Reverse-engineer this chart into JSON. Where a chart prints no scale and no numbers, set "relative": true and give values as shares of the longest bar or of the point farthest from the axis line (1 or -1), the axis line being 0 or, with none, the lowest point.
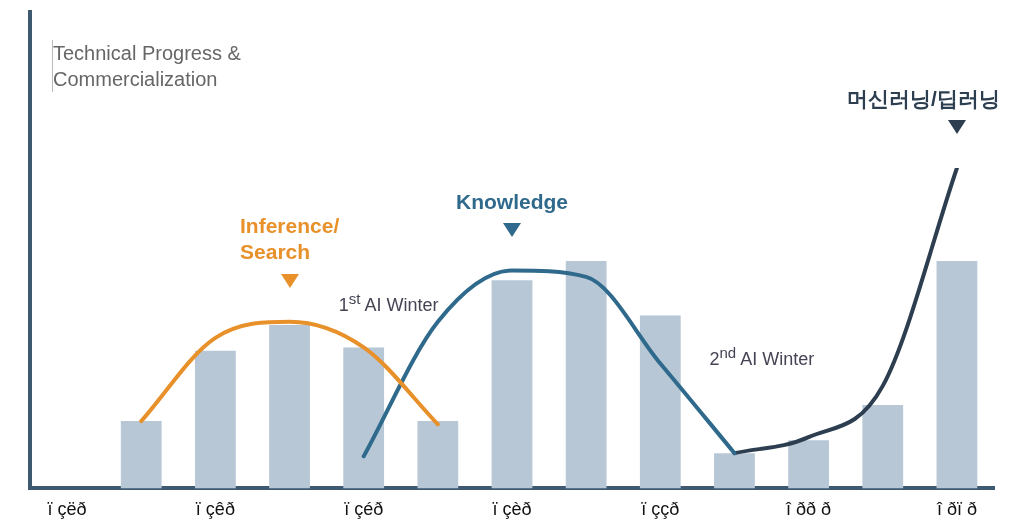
{
  "chart_data": {
    "type": "bar",
    "relative": true,
    "ylabel": "Technical Progress & Commercialization",
    "categories": [
      "ï çëð",
      null,
      "ï çêð",
      null,
      "ï çéð",
      null,
      "ï çèð",
      null,
      "ï ççð",
      null,
      "î ðð ð",
      null,
      "î ðï ð"
    ],
    "series": [
      {
        "color": "#b7c7d6",
        "values": [
          null,
          0.21,
          0.43,
          0.51,
          0.44,
          0.21,
          0.65,
          0.71,
          0.54,
          0.11,
          0.15,
          0.26,
          0.71
        ]
      },
      {
        "type": "line",
        "name": "Inference/ Search",
        "color": "#e8902a",
        "values": [
          null,
          0.21,
          0.47,
          0.52,
          0.44,
          0.2,
          null,
          null,
          null,
          null,
          null,
          null,
          null
        ]
      },
      {
        "type": "line",
        "name": "Knowledge",
        "color": "#2f6a8c",
        "values": [
          null,
          null,
          null,
          null,
          0.1,
          0.52,
          0.68,
          0.66,
          0.39,
          0.11,
          null,
          null,
          null
        ]
      },
      {
        "type": "line",
        "name": "머신러닝/딥러닝",
        "color": "#2c3e50",
        "values": [
          null,
          null,
          null,
          null,
          null,
          null,
          null,
          null,
          null,
          0.11,
          0.16,
          0.32,
          1.0
        ]
      }
    ],
    "annotations": [
      "1$^{st}$ AI Winter",
      "2$^{nd}$ AI Winter"
    ],
    "marker": "none"
  }
}
